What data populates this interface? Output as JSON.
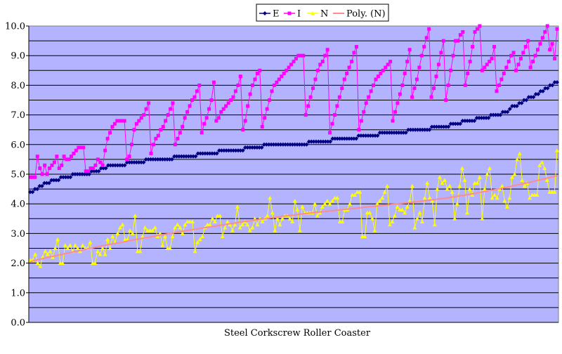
{
  "chart_data": {
    "type": "line",
    "title": "",
    "xlabel": "Steel Corkscrew Roller Coaster",
    "ylabel": "",
    "ylim": [
      0,
      10
    ],
    "yticks": [
      "0.0",
      "1.0",
      "2.0",
      "3.0",
      "4.0",
      "5.0",
      "6.0",
      "7.0",
      "8.0",
      "9.0",
      "10.0"
    ],
    "grid": true,
    "legend_position": "top",
    "plot_background": "#b3b3ff",
    "series": [
      {
        "name": "E",
        "color": "#000080",
        "marker": "diamond",
        "values": [
          4.4,
          4.4,
          4.5,
          4.5,
          4.6,
          4.6,
          4.7,
          4.7,
          4.7,
          4.8,
          4.8,
          4.8,
          4.8,
          4.9,
          4.9,
          4.9,
          4.9,
          4.9,
          5.0,
          5.0,
          5.0,
          5.0,
          5.0,
          5.0,
          5.0,
          5.0,
          5.1,
          5.1,
          5.1,
          5.1,
          5.2,
          5.2,
          5.2,
          5.3,
          5.3,
          5.3,
          5.3,
          5.3,
          5.3,
          5.3,
          5.3,
          5.4,
          5.4,
          5.4,
          5.4,
          5.4,
          5.4,
          5.4,
          5.4,
          5.5,
          5.5,
          5.5,
          5.5,
          5.5,
          5.5,
          5.5,
          5.5,
          5.5,
          5.5,
          5.5,
          5.5,
          5.6,
          5.6,
          5.6,
          5.6,
          5.6,
          5.6,
          5.6,
          5.6,
          5.6,
          5.6,
          5.7,
          5.7,
          5.7,
          5.7,
          5.7,
          5.7,
          5.7,
          5.7,
          5.7,
          5.8,
          5.8,
          5.8,
          5.8,
          5.8,
          5.8,
          5.8,
          5.8,
          5.8,
          5.8,
          5.8,
          5.9,
          5.9,
          5.9,
          5.9,
          5.9,
          5.9,
          5.9,
          5.9,
          6.0,
          6.0,
          6.0,
          6.0,
          6.0,
          6.0,
          6.0,
          6.0,
          6.0,
          6.0,
          6.0,
          6.0,
          6.0,
          6.0,
          6.0,
          6.0,
          6.0,
          6.0,
          6.0,
          6.1,
          6.1,
          6.1,
          6.1,
          6.1,
          6.1,
          6.1,
          6.1,
          6.1,
          6.1,
          6.2,
          6.2,
          6.2,
          6.2,
          6.2,
          6.2,
          6.2,
          6.2,
          6.2,
          6.2,
          6.2,
          6.3,
          6.3,
          6.3,
          6.3,
          6.3,
          6.3,
          6.3,
          6.3,
          6.3,
          6.4,
          6.4,
          6.4,
          6.4,
          6.4,
          6.4,
          6.4,
          6.4,
          6.4,
          6.4,
          6.4,
          6.4,
          6.5,
          6.5,
          6.5,
          6.5,
          6.5,
          6.5,
          6.5,
          6.5,
          6.5,
          6.5,
          6.6,
          6.6,
          6.6,
          6.6,
          6.6,
          6.6,
          6.6,
          6.6,
          6.7,
          6.7,
          6.7,
          6.7,
          6.7,
          6.8,
          6.8,
          6.8,
          6.8,
          6.8,
          6.8,
          6.9,
          6.9,
          6.9,
          6.9,
          6.9,
          6.9,
          7.0,
          7.0,
          7.0,
          7.0,
          7.0,
          7.1,
          7.1,
          7.1,
          7.2,
          7.3,
          7.3,
          7.3,
          7.4,
          7.4,
          7.5,
          7.5,
          7.6,
          7.6,
          7.6,
          7.7,
          7.7,
          7.8,
          7.8,
          7.9,
          7.9,
          8.0,
          8.0,
          8.1,
          8.1
        ]
      },
      {
        "name": "I",
        "color": "#ff00ff",
        "marker": "square",
        "values": [
          4.9,
          4.9,
          4.9,
          5.6,
          5.2,
          5.0,
          5.3,
          5.0,
          5.2,
          5.3,
          5.4,
          5.6,
          5.2,
          5.3,
          5.6,
          5.5,
          5.5,
          5.6,
          5.7,
          5.8,
          5.9,
          5.9,
          5.9,
          5.1,
          5.1,
          5.2,
          5.2,
          5.3,
          5.5,
          5.4,
          5.3,
          5.8,
          6.2,
          6.4,
          6.6,
          6.7,
          6.8,
          6.8,
          6.8,
          6.8,
          5.5,
          5.6,
          6.0,
          6.5,
          6.7,
          6.8,
          6.9,
          7.0,
          7.2,
          7.4,
          5.7,
          6.0,
          6.2,
          6.3,
          6.5,
          6.6,
          6.8,
          7.0,
          7.2,
          7.4,
          6.0,
          6.2,
          6.4,
          6.6,
          6.9,
          7.1,
          7.3,
          7.5,
          7.6,
          7.8,
          8.0,
          6.4,
          6.7,
          6.9,
          7.2,
          7.5,
          8.1,
          6.8,
          6.9,
          7.1,
          7.2,
          7.3,
          7.4,
          7.5,
          7.6,
          7.8,
          8.0,
          8.3,
          6.5,
          6.8,
          7.3,
          7.7,
          8.0,
          8.2,
          8.4,
          8.5,
          6.6,
          6.9,
          7.2,
          7.5,
          7.8,
          8.0,
          8.1,
          8.2,
          8.3,
          8.4,
          8.5,
          8.6,
          8.7,
          8.8,
          8.9,
          9.0,
          9.0,
          9.0,
          7.0,
          7.3,
          7.6,
          7.9,
          8.2,
          8.5,
          8.7,
          8.8,
          9.0,
          9.2,
          6.4,
          6.7,
          7.0,
          7.3,
          7.6,
          7.9,
          8.2,
          8.4,
          8.6,
          8.8,
          9.1,
          9.3,
          6.5,
          6.8,
          7.1,
          7.4,
          7.6,
          7.8,
          8.0,
          8.2,
          8.3,
          8.4,
          8.5,
          8.6,
          8.7,
          8.8,
          6.8,
          7.1,
          7.4,
          7.7,
          8.0,
          8.4,
          8.8,
          9.2,
          7.6,
          7.9,
          8.2,
          8.6,
          9.0,
          9.3,
          9.6,
          9.9,
          7.6,
          7.9,
          8.3,
          8.7,
          9.1,
          9.5,
          7.5,
          8.0,
          8.5,
          9.0,
          9.5,
          9.5,
          9.7,
          9.8,
          8.0,
          8.4,
          8.8,
          9.3,
          9.8,
          9.9,
          10.0,
          8.5,
          8.6,
          8.7,
          8.8,
          8.9,
          9.3,
          7.8,
          8.0,
          8.2,
          8.4,
          8.6,
          8.8,
          9.0,
          9.1,
          8.5,
          8.7,
          8.9,
          9.1,
          9.3,
          9.5,
          8.6,
          8.8,
          9.0,
          9.2,
          9.4,
          9.6,
          9.8,
          10.0,
          9.2,
          9.4,
          8.9,
          9.9
        ]
      },
      {
        "name": "N",
        "color": "#ffff00",
        "marker": "triangle",
        "values": [
          2.1,
          2.1,
          2.3,
          2.0,
          1.9,
          2.2,
          2.4,
          2.3,
          2.4,
          2.2,
          2.5,
          2.8,
          2.0,
          2.0,
          2.6,
          2.5,
          2.6,
          2.4,
          2.6,
          2.5,
          2.4,
          2.6,
          2.5,
          2.5,
          2.7,
          2.0,
          2.0,
          2.4,
          2.3,
          2.5,
          2.3,
          2.8,
          2.5,
          2.9,
          2.7,
          3.0,
          3.2,
          3.3,
          2.8,
          2.8,
          3.1,
          3.0,
          3.6,
          2.4,
          2.4,
          2.9,
          3.2,
          3.1,
          3.1,
          3.1,
          3.2,
          2.9,
          3.0,
          2.6,
          2.9,
          2.5,
          2.5,
          2.9,
          3.2,
          3.3,
          3.2,
          3.0,
          3.3,
          3.4,
          3.4,
          3.4,
          2.4,
          2.7,
          2.8,
          2.9,
          3.2,
          3.3,
          3.3,
          3.5,
          3.4,
          3.6,
          3.6,
          2.9,
          3.2,
          3.4,
          3.3,
          3.1,
          3.3,
          3.9,
          3.2,
          3.3,
          3.4,
          3.3,
          3.1,
          3.2,
          3.5,
          3.3,
          3.5,
          3.4,
          3.5,
          3.6,
          4.2,
          3.7,
          3.1,
          3.5,
          3.3,
          3.5,
          3.6,
          3.6,
          3.5,
          3.4,
          4.1,
          3.8,
          3.1,
          3.9,
          3.7,
          3.7,
          3.7,
          3.7,
          4.0,
          3.6,
          3.7,
          3.9,
          4.0,
          4.1,
          4.0,
          4.1,
          4.2,
          4.2,
          3.4,
          3.4,
          3.8,
          3.8,
          4.0,
          4.3,
          4.3,
          4.4,
          4.4,
          2.9,
          2.9,
          3.7,
          3.7,
          3.5,
          3.1,
          4.0,
          4.1,
          4.2,
          4.4,
          4.6,
          3.3,
          3.4,
          3.6,
          3.9,
          3.8,
          3.8,
          3.7,
          3.9,
          4.1,
          4.6,
          3.2,
          3.5,
          3.7,
          3.4,
          4.2,
          4.7,
          4.2,
          4.1,
          3.3,
          4.5,
          4.9,
          4.7,
          4.8,
          4.5,
          4.6,
          4.4,
          3.5,
          4.0,
          4.6,
          5.2,
          4.8,
          3.7,
          4.5,
          4.3,
          4.7,
          4.7,
          4.9,
          3.5,
          4.5,
          5.0,
          5.2,
          4.2,
          4.3,
          4.2,
          4.5,
          4.6,
          4.1,
          3.9,
          4.2,
          4.9,
          5.0,
          5.5,
          5.7,
          4.8,
          4.6,
          4.7,
          4.2,
          4.3,
          4.3,
          4.3,
          5.3,
          5.4,
          5.2,
          4.8,
          4.4,
          4.4,
          4.4,
          5.8
        ]
      },
      {
        "name": "Poly. (N)",
        "color": "#ff8c8c",
        "marker": "none",
        "trendline": true,
        "values": [
          2.05,
          2.1,
          2.14,
          2.19,
          2.23,
          2.27,
          2.31,
          2.35,
          2.39,
          2.43,
          2.47,
          2.51,
          2.55,
          2.59,
          2.62,
          2.66,
          2.69,
          2.73,
          2.77,
          2.8,
          2.84,
          2.87,
          2.9,
          2.94,
          2.97,
          3.0,
          3.04,
          3.07,
          3.1,
          3.13,
          3.16,
          3.19,
          3.22,
          3.25,
          3.28,
          3.31,
          3.34,
          3.37,
          3.4,
          3.42,
          3.45,
          3.48,
          3.5,
          3.53,
          3.55,
          3.58,
          3.6,
          3.62,
          3.65,
          3.67,
          3.69,
          3.71,
          3.73,
          3.75,
          3.77,
          3.79,
          3.81,
          3.83,
          3.85,
          3.87,
          3.89,
          3.91,
          3.93,
          3.95,
          3.97,
          3.99,
          4.01,
          4.03,
          4.05,
          4.07,
          4.1,
          4.12,
          4.14,
          4.17,
          4.19,
          4.22,
          4.25,
          4.28,
          4.31,
          4.34,
          4.38,
          4.41,
          4.45,
          4.48,
          4.52,
          4.56,
          4.6,
          4.64,
          4.68,
          4.72,
          4.77,
          4.81,
          4.86,
          4.9,
          4.95
        ]
      }
    ]
  }
}
